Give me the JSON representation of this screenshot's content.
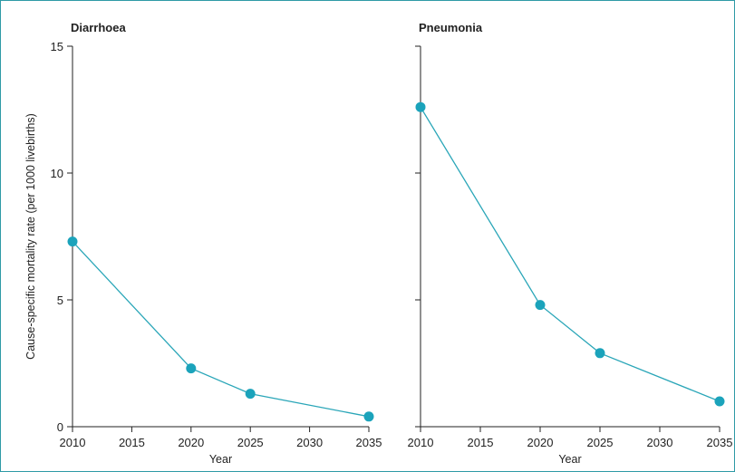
{
  "ylabel": "Cause-specific mortality rate (per 1000 livebirths)",
  "colors": {
    "series": "#1ba3bb",
    "line": "#2aa6b8",
    "border": "#2f9aa6"
  },
  "chart_data": [
    {
      "type": "line",
      "title": "Diarrhoea",
      "xlabel": "Year",
      "xlim": [
        2010,
        2035
      ],
      "ylim": [
        0,
        15
      ],
      "xticks": [
        2010,
        2015,
        2020,
        2025,
        2030,
        2035
      ],
      "yticks": [
        0,
        5,
        10,
        15
      ],
      "x": [
        2010,
        2020,
        2025,
        2035
      ],
      "y": [
        7.3,
        2.3,
        1.3,
        0.4
      ]
    },
    {
      "type": "line",
      "title": "Pneumonia",
      "xlabel": "Year",
      "xlim": [
        2010,
        2035
      ],
      "ylim": [
        0,
        15
      ],
      "xticks": [
        2010,
        2015,
        2020,
        2025,
        2030,
        2035
      ],
      "yticks": [
        0,
        5,
        10,
        15
      ],
      "x": [
        2010,
        2020,
        2025,
        2035
      ],
      "y": [
        12.6,
        4.8,
        2.9,
        1.0
      ]
    }
  ]
}
